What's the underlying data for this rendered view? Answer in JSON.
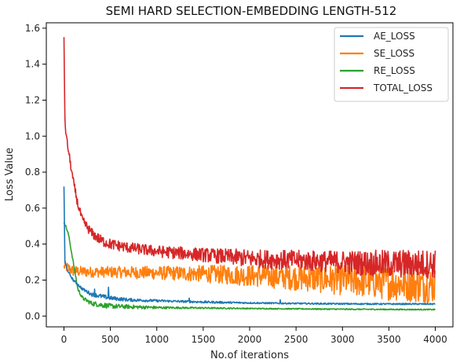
{
  "chart_data": {
    "type": "line",
    "title": "SEMI HARD SELECTION-EMBEDDING LENGTH-512",
    "xlabel": "No.of iterations",
    "ylabel": "Loss Value",
    "xlim": [
      -190,
      4190
    ],
    "ylim": [
      -0.06,
      1.63
    ],
    "xticks": [
      0,
      500,
      1000,
      1500,
      2000,
      2500,
      3000,
      3500,
      4000
    ],
    "xtick_labels": [
      "0",
      "500",
      "1000",
      "1500",
      "2000",
      "2500",
      "3000",
      "3500",
      "4000"
    ],
    "yticks": [
      0.0,
      0.2,
      0.4,
      0.6,
      0.8,
      1.0,
      1.2,
      1.4,
      1.6
    ],
    "ytick_labels": [
      "0.0",
      "0.2",
      "0.4",
      "0.6",
      "0.8",
      "1.0",
      "1.2",
      "1.4",
      "1.6"
    ],
    "grid": false,
    "legend_position": "top-right",
    "series": [
      {
        "name": "AE_LOSS",
        "color": "#1f77b4",
        "noise": [
          0.004,
          0.012,
          0.008,
          0.006,
          0.006,
          0.004,
          0.004,
          0.004,
          0.004,
          0.004,
          0.004
        ],
        "x": [
          0,
          10,
          50,
          100,
          200,
          300,
          500,
          700,
          1000,
          1500,
          2000,
          2500,
          3000,
          3500,
          4000
        ],
        "y": [
          0.72,
          0.3,
          0.24,
          0.2,
          0.15,
          0.12,
          0.1,
          0.09,
          0.085,
          0.078,
          0.073,
          0.07,
          0.068,
          0.067,
          0.067
        ],
        "spikes": [
          {
            "x": 330,
            "y": 0.15
          },
          {
            "x": 480,
            "y": 0.16
          },
          {
            "x": 1350,
            "y": 0.1
          },
          {
            "x": 2330,
            "y": 0.09
          }
        ]
      },
      {
        "name": "SE_LOSS",
        "color": "#ff7f0e",
        "noise": [
          0.03,
          0.03,
          0.035,
          0.04,
          0.05,
          0.06,
          0.07,
          0.08,
          0.09,
          0.1,
          0.1
        ],
        "x": [
          0,
          100,
          300,
          500,
          1000,
          1500,
          2000,
          2500,
          3000,
          3500,
          4000
        ],
        "y": [
          0.28,
          0.25,
          0.245,
          0.245,
          0.24,
          0.235,
          0.225,
          0.215,
          0.2,
          0.185,
          0.17
        ],
        "spikes": []
      },
      {
        "name": "RE_LOSS",
        "color": "#2ca02c",
        "noise": [
          0.005,
          0.015,
          0.01,
          0.005,
          0.004,
          0.003,
          0.003,
          0.003,
          0.003,
          0.003,
          0.003
        ],
        "x": [
          0,
          20,
          50,
          100,
          150,
          200,
          300,
          500,
          800,
          1000,
          1500,
          2000,
          2500,
          3000,
          3500,
          4000
        ],
        "y": [
          0.52,
          0.5,
          0.45,
          0.3,
          0.15,
          0.1,
          0.07,
          0.055,
          0.05,
          0.047,
          0.045,
          0.042,
          0.04,
          0.038,
          0.037,
          0.036
        ],
        "spikes": []
      },
      {
        "name": "TOTAL_LOSS",
        "color": "#d62728",
        "noise": [
          0.02,
          0.03,
          0.03,
          0.035,
          0.04,
          0.05,
          0.055,
          0.06,
          0.07,
          0.08,
          0.08
        ],
        "x": [
          0,
          10,
          30,
          60,
          100,
          150,
          200,
          300,
          400,
          500,
          700,
          1000,
          1500,
          2000,
          2500,
          3000,
          3500,
          4000
        ],
        "y": [
          1.55,
          1.08,
          0.98,
          0.88,
          0.75,
          0.62,
          0.53,
          0.46,
          0.42,
          0.4,
          0.38,
          0.36,
          0.34,
          0.32,
          0.31,
          0.3,
          0.29,
          0.29
        ],
        "spikes": []
      }
    ]
  }
}
